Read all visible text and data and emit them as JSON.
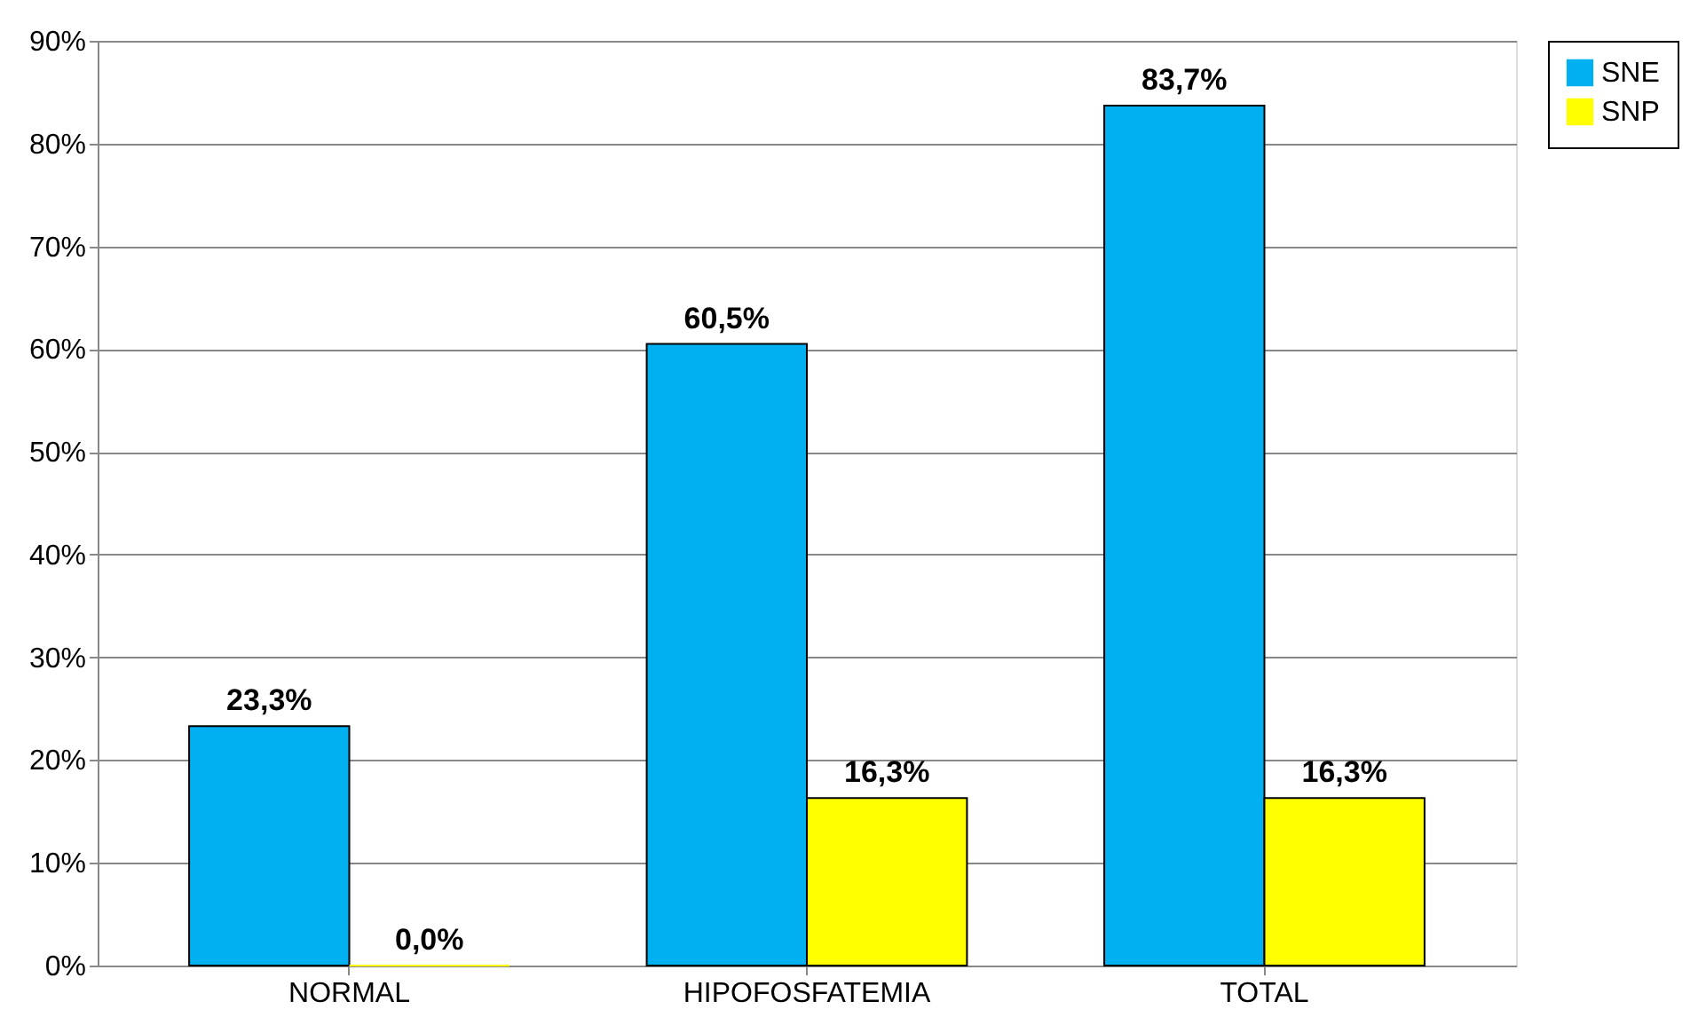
{
  "chart_data": {
    "type": "bar",
    "categories": [
      "NORMAL",
      "HIPOFOSFATEMIA",
      "TOTAL"
    ],
    "series": [
      {
        "name": "SNE",
        "color": "#00b0f0",
        "values": [
          23.3,
          60.5,
          83.7
        ],
        "value_labels": [
          "23,3%",
          "60,5%",
          "83,7%"
        ]
      },
      {
        "name": "SNP",
        "color": "#ffff00",
        "values": [
          0.0,
          16.3,
          16.3
        ],
        "value_labels": [
          "0,0%",
          "16,3%",
          "16,3%"
        ]
      }
    ],
    "ylim": [
      0,
      90
    ],
    "yticks": [
      {
        "value": 0,
        "label": "0%"
      },
      {
        "value": 10,
        "label": "10%"
      },
      {
        "value": 20,
        "label": "20%"
      },
      {
        "value": 30,
        "label": "30%"
      },
      {
        "value": 40,
        "label": "40%"
      },
      {
        "value": 50,
        "label": "50%"
      },
      {
        "value": 60,
        "label": "60%"
      },
      {
        "value": 70,
        "label": "70%"
      },
      {
        "value": 80,
        "label": "80%"
      },
      {
        "value": 90,
        "label": "90%"
      }
    ],
    "grid": "y",
    "legend": "right"
  }
}
